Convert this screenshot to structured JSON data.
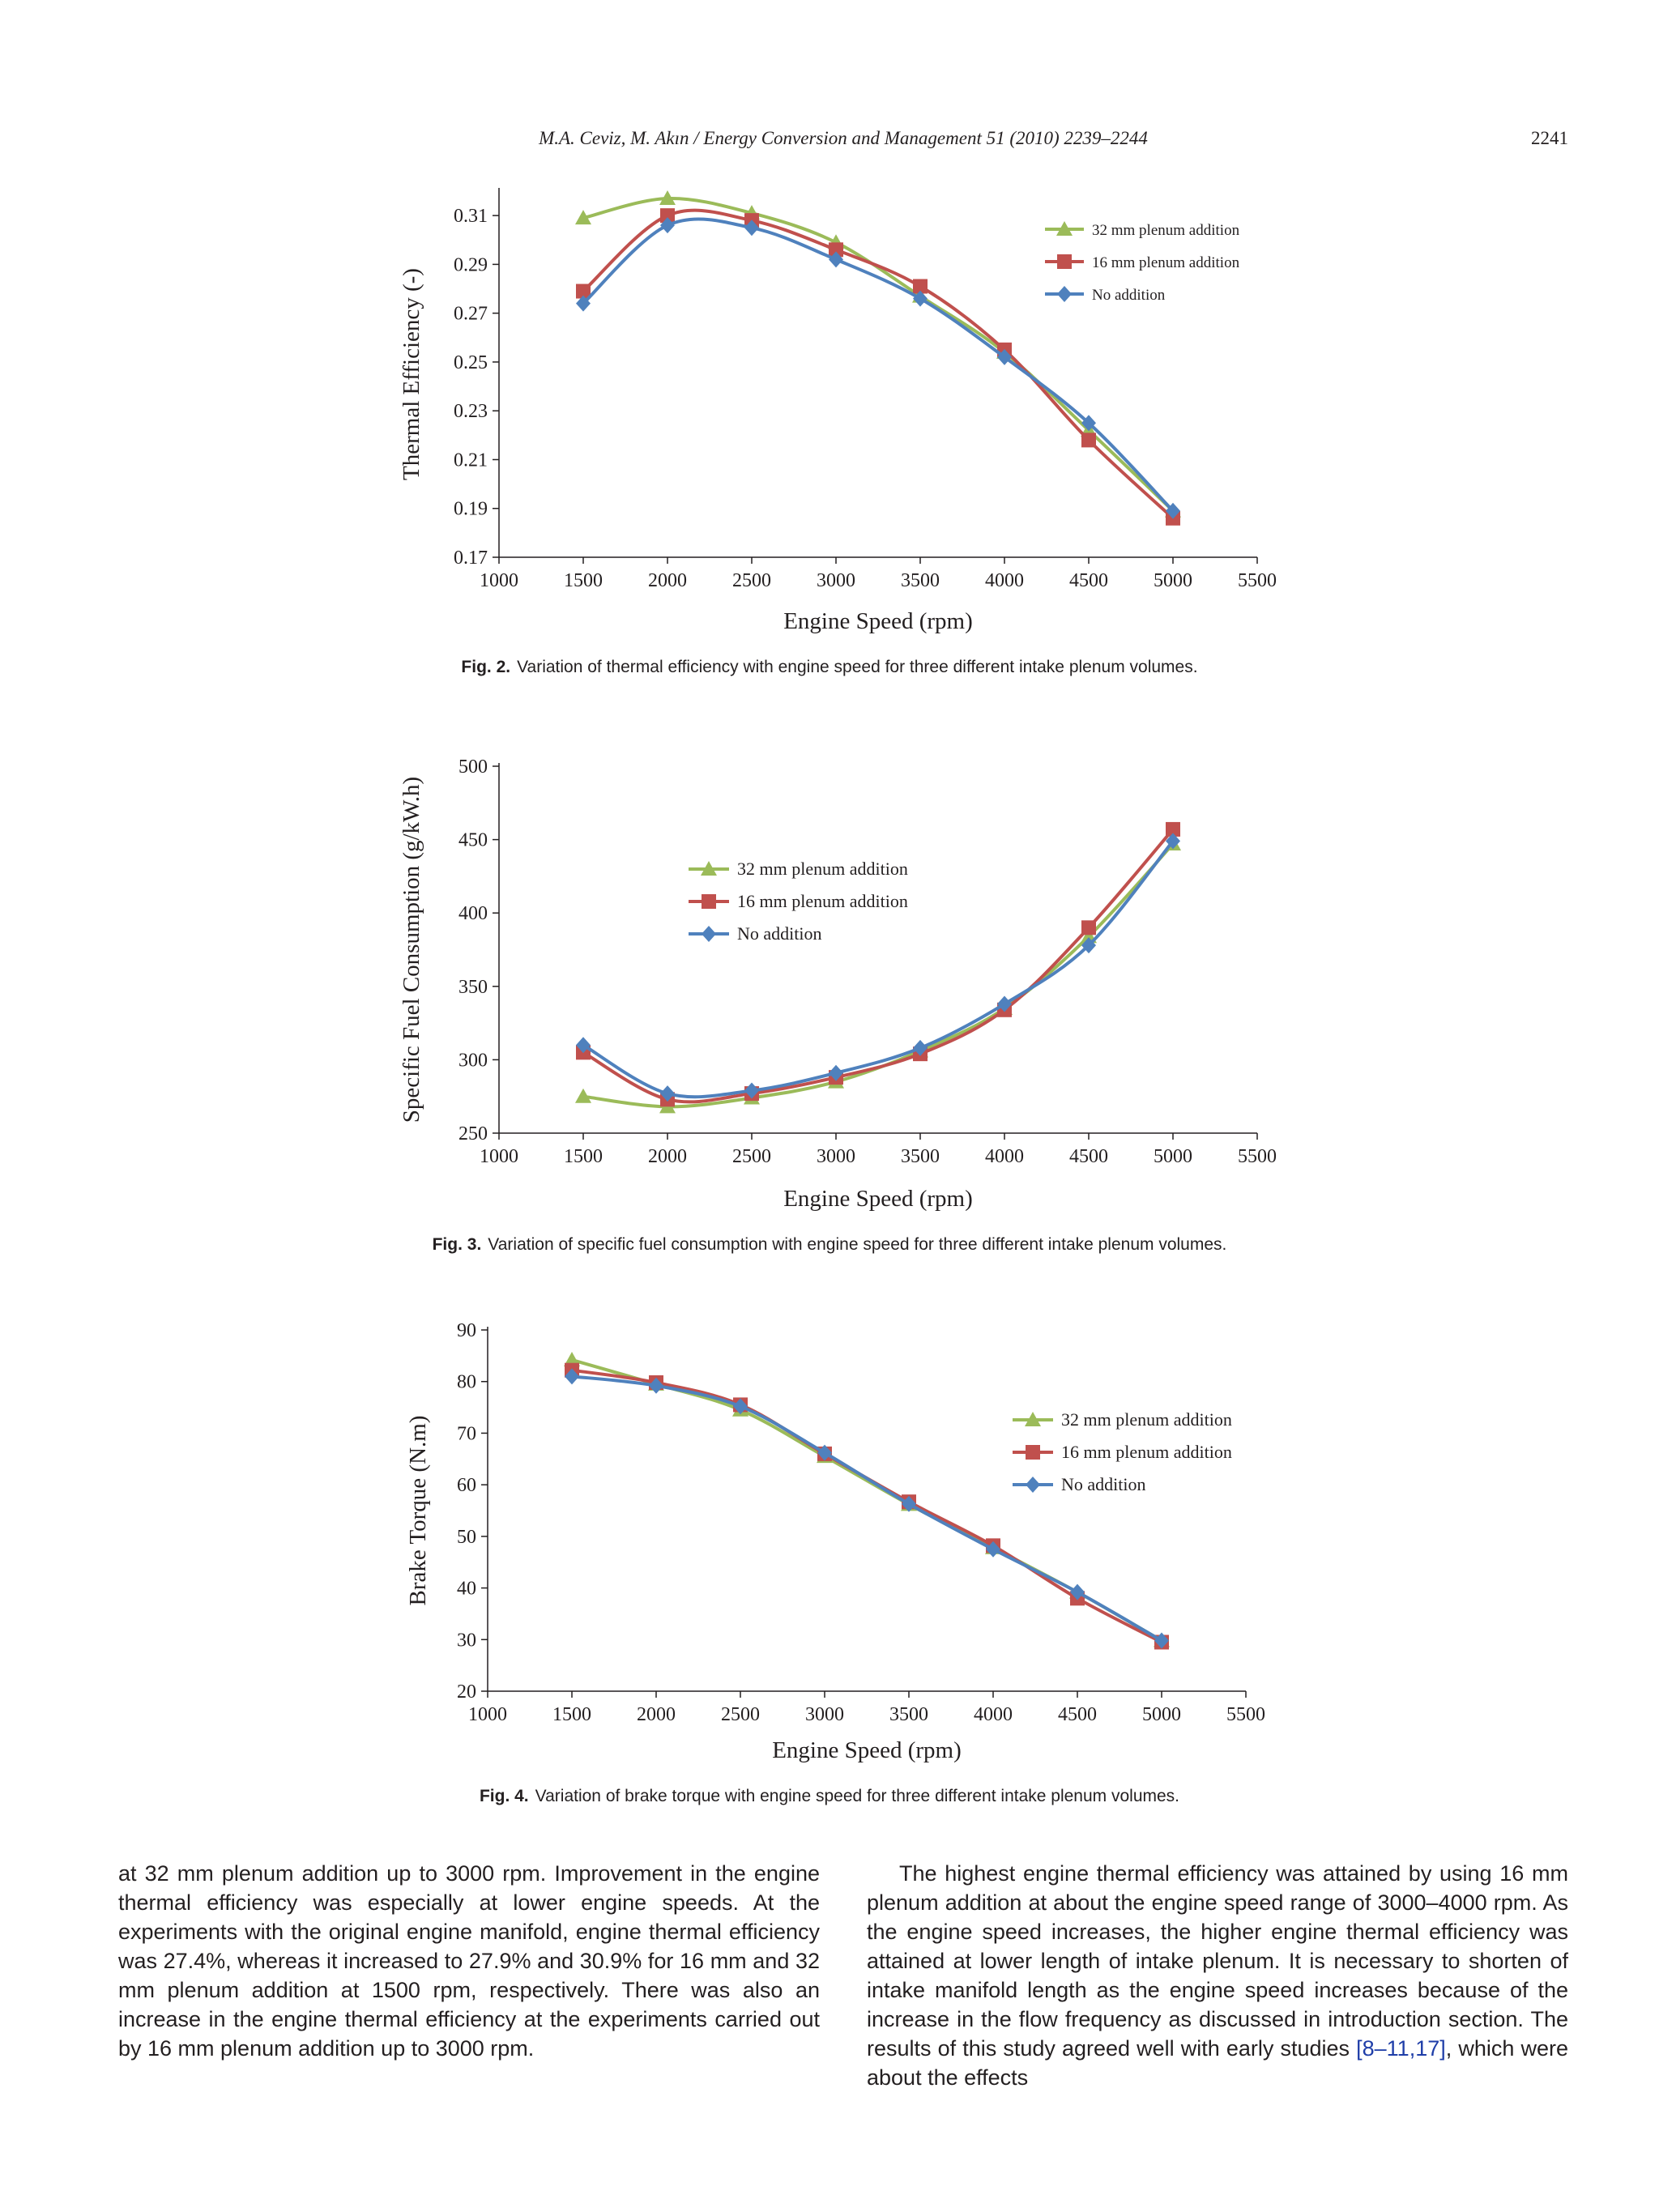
{
  "header": {
    "running_title": "M.A. Ceviz, M. Akın / Energy Conversion and Management 51 (2010) 2239–2244",
    "page_number": "2241"
  },
  "colors": {
    "s32": "#9bbb59",
    "s16": "#c0504d",
    "s0": "#4f81bd",
    "axis": "#231f20"
  },
  "figures": [
    {
      "label": "Fig. 2.",
      "text": "Variation of thermal efficiency with engine speed for three different intake plenum volumes."
    },
    {
      "label": "Fig. 3.",
      "text": "Variation of specific fuel consumption with engine speed for three different intake plenum volumes."
    },
    {
      "label": "Fig. 4.",
      "text": "Variation of brake torque with engine speed for three different intake plenum volumes."
    }
  ],
  "chart_data": [
    {
      "type": "line",
      "xlabel": "Engine Speed (rpm)",
      "ylabel": "Thermal Efficiency (-)",
      "xlim": [
        1000,
        5500
      ],
      "ylim": [
        0.17,
        0.32
      ],
      "xticks": [
        "1000",
        "1500",
        "2000",
        "2500",
        "3000",
        "3500",
        "4000",
        "4500",
        "5000",
        "5500"
      ],
      "yticks": [
        "0.17",
        "0.19",
        "0.21",
        "0.23",
        "0.25",
        "0.27",
        "0.29",
        "0.31"
      ],
      "legend_position": "top-right",
      "x": [
        1500,
        2000,
        2500,
        3000,
        3500,
        4000,
        4500,
        5000
      ],
      "series": [
        {
          "name": "32 mm plenum addition",
          "color": "#9bbb59",
          "marker": "triangle",
          "values": [
            0.309,
            0.317,
            0.311,
            0.299,
            0.277,
            0.254,
            0.222,
            0.189
          ]
        },
        {
          "name": "16 mm plenum addition",
          "color": "#c0504d",
          "marker": "square",
          "values": [
            0.279,
            0.31,
            0.308,
            0.296,
            0.281,
            0.255,
            0.218,
            0.186
          ]
        },
        {
          "name": "No addition",
          "color": "#4f81bd",
          "marker": "diamond",
          "values": [
            0.274,
            0.306,
            0.305,
            0.292,
            0.276,
            0.252,
            0.225,
            0.189
          ]
        }
      ]
    },
    {
      "type": "line",
      "xlabel": "Engine Speed (rpm)",
      "ylabel": "Specific Fuel Consumption (g/kW.h)",
      "xlim": [
        1000,
        5500
      ],
      "ylim": [
        250,
        500
      ],
      "xticks": [
        "1000",
        "1500",
        "2000",
        "2500",
        "3000",
        "3500",
        "4000",
        "4500",
        "5000",
        "5500"
      ],
      "yticks": [
        "250",
        "300",
        "350",
        "400",
        "450",
        "500"
      ],
      "legend_position": "center-left",
      "x": [
        1500,
        2000,
        2500,
        3000,
        3500,
        4000,
        4500,
        5000
      ],
      "series": [
        {
          "name": "32 mm plenum addition",
          "color": "#9bbb59",
          "marker": "triangle",
          "values": [
            275,
            268,
            274,
            285,
            306,
            335,
            384,
            447
          ]
        },
        {
          "name": "16 mm plenum addition",
          "color": "#c0504d",
          "marker": "square",
          "values": [
            305,
            273,
            277,
            288,
            304,
            334,
            390,
            457
          ]
        },
        {
          "name": "No addition",
          "color": "#4f81bd",
          "marker": "diamond",
          "values": [
            310,
            277,
            279,
            291,
            308,
            338,
            378,
            449
          ]
        }
      ]
    },
    {
      "type": "line",
      "xlabel": "Engine Speed (rpm)",
      "ylabel": "Brake Torque (N.m)",
      "xlim": [
        1000,
        5500
      ],
      "ylim": [
        20,
        90
      ],
      "xticks": [
        "1000",
        "1500",
        "2000",
        "2500",
        "3000",
        "3500",
        "4000",
        "4500",
        "5000",
        "5500"
      ],
      "yticks": [
        "20",
        "30",
        "40",
        "50",
        "60",
        "70",
        "80",
        "90"
      ],
      "legend_position": "right",
      "x": [
        1500,
        2000,
        2500,
        3000,
        3500,
        4000,
        4500,
        5000
      ],
      "series": [
        {
          "name": "32 mm plenum addition",
          "color": "#9bbb59",
          "marker": "triangle",
          "values": [
            84.2,
            79.5,
            74.5,
            65.5,
            56.2,
            47.8,
            39.2,
            29.8
          ]
        },
        {
          "name": "16 mm plenum addition",
          "color": "#c0504d",
          "marker": "square",
          "values": [
            82.2,
            79.8,
            75.5,
            66,
            56.7,
            48.2,
            38,
            29.5
          ]
        },
        {
          "name": "No addition",
          "color": "#4f81bd",
          "marker": "diamond",
          "values": [
            81,
            79.2,
            75.2,
            66.2,
            56.3,
            47.5,
            39.2,
            29.8
          ]
        }
      ]
    }
  ],
  "body": {
    "left": "at 32 mm plenum addition up to 3000 rpm. Improvement in the engine thermal efficiency was especially at lower engine speeds. At the experiments with the original engine manifold, engine thermal efficiency was 27.4%, whereas it increased to 27.9% and 30.9% for 16 mm and 32 mm plenum addition at 1500 rpm, respectively. There was also an increase in the engine thermal efficiency at the experiments carried out by 16 mm plenum addition up to 3000 rpm.",
    "right_a": "The highest engine thermal efficiency was attained by using 16 mm plenum addition at about the engine speed range of 3000–4000 rpm. As the engine speed increases, the higher engine thermal efficiency was attained at lower length of intake plenum. It is necessary to shorten of intake manifold length as the engine speed increases because of the increase in the flow frequency as discussed in introduction section. The results of this study agreed well with early studies ",
    "right_ref": "[8–11,17]",
    "right_b": ", which were about the effects"
  }
}
